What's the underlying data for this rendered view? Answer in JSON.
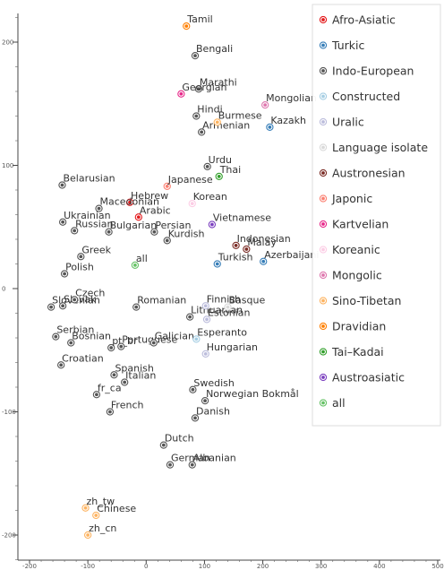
{
  "chart_data": {
    "type": "scatter",
    "title": "",
    "xlabel": "",
    "ylabel": "",
    "xlim": [
      -215,
      505
    ],
    "ylim": [
      -222,
      222
    ],
    "x_ticks": [
      "-200",
      "-100",
      "0",
      "100",
      "200",
      "300",
      "400",
      "500"
    ],
    "x_tick_values": [
      -200,
      -100,
      0,
      100,
      200,
      300,
      400,
      500
    ],
    "y_ticks": [
      "200",
      "100",
      "0",
      "-100",
      "-200"
    ],
    "y_tick_values": [
      200,
      100,
      0,
      -100,
      -200
    ],
    "grid": false,
    "legend_position": "top-right",
    "series": [
      {
        "name": "Afro-Asiatic",
        "color": "#e41a1c",
        "points": [
          {
            "label": "Hebrew",
            "x": -28,
            "y": 70
          },
          {
            "label": "Arabic",
            "x": -13,
            "y": 58
          }
        ]
      },
      {
        "name": "Turkic",
        "color": "#377eb8",
        "points": [
          {
            "label": "Kazakh",
            "x": 212,
            "y": 131
          },
          {
            "label": "Turkish",
            "x": 122,
            "y": 20
          },
          {
            "label": "Azerbaijani",
            "x": 201,
            "y": 22
          }
        ]
      },
      {
        "name": "Indo-European",
        "color": "#555555",
        "points": [
          {
            "label": "Bengali",
            "x": 84,
            "y": 189
          },
          {
            "label": "Marathi",
            "x": 90,
            "y": 162
          },
          {
            "label": "Hindi",
            "x": 86,
            "y": 140
          },
          {
            "label": "Armenian",
            "x": 95,
            "y": 127
          },
          {
            "label": "Urdu",
            "x": 105,
            "y": 99
          },
          {
            "label": "Belarusian",
            "x": -144,
            "y": 84
          },
          {
            "label": "Macedonian",
            "x": -81,
            "y": 65
          },
          {
            "label": "Ukrainian",
            "x": -143,
            "y": 54
          },
          {
            "label": "Russian",
            "x": -123,
            "y": 47
          },
          {
            "label": "Bulgarian",
            "x": -64,
            "y": 46
          },
          {
            "label": "Persian",
            "x": 14,
            "y": 46
          },
          {
            "label": "Kurdish",
            "x": 36,
            "y": 39
          },
          {
            "label": "Greek",
            "x": -112,
            "y": 26
          },
          {
            "label": "Polish",
            "x": -140,
            "y": 12
          },
          {
            "label": "Slovenian",
            "x": -163,
            "y": -15
          },
          {
            "label": "Slovak",
            "x": -143,
            "y": -14
          },
          {
            "label": "Czech",
            "x": -123,
            "y": -9
          },
          {
            "label": "Romanian",
            "x": -17,
            "y": -15
          },
          {
            "label": "Lithuanian",
            "x": 75,
            "y": -23
          },
          {
            "label": "Serbian",
            "x": -155,
            "y": -39
          },
          {
            "label": "Bosnian",
            "x": -129,
            "y": -44
          },
          {
            "label": "pt_br",
            "x": -60,
            "y": -48
          },
          {
            "label": "Portuguese",
            "x": -43,
            "y": -47
          },
          {
            "label": "Galician",
            "x": 13,
            "y": -44
          },
          {
            "label": "Croatian",
            "x": -146,
            "y": -62
          },
          {
            "label": "Spanish",
            "x": -55,
            "y": -70
          },
          {
            "label": "Italian",
            "x": -37,
            "y": -76
          },
          {
            "label": "fr_ca",
            "x": -85,
            "y": -86
          },
          {
            "label": "Swedish",
            "x": 80,
            "y": -82
          },
          {
            "label": "Norwegian Bokmål",
            "x": 101,
            "y": -91
          },
          {
            "label": "French",
            "x": -62,
            "y": -100
          },
          {
            "label": "Danish",
            "x": 84,
            "y": -105
          },
          {
            "label": "Dutch",
            "x": 30,
            "y": -127
          },
          {
            "label": "German",
            "x": 41,
            "y": -143
          },
          {
            "label": "Albanian",
            "x": 79,
            "y": -143
          }
        ]
      },
      {
        "name": "Constructed",
        "color": "#a6cee3",
        "points": [
          {
            "label": "Esperanto",
            "x": 86,
            "y": -41
          }
        ]
      },
      {
        "name": "Uralic",
        "color": "#bcbddc",
        "points": [
          {
            "label": "Finnish",
            "x": 102,
            "y": -14
          },
          {
            "label": "Estonian",
            "x": 104,
            "y": -25
          },
          {
            "label": "Hungarian",
            "x": 102,
            "y": -53
          }
        ]
      },
      {
        "name": "Language isolate",
        "color": "#d9d9d9",
        "points": [
          {
            "label": "Basque",
            "x": 140,
            "y": -15
          }
        ]
      },
      {
        "name": "Austronesian",
        "color": "#7b2d26",
        "points": [
          {
            "label": "Indonesian",
            "x": 154,
            "y": 35
          },
          {
            "label": "Malay",
            "x": 172,
            "y": 32
          }
        ]
      },
      {
        "name": "Japonic",
        "color": "#fb8072",
        "points": [
          {
            "label": "Japanese",
            "x": 36,
            "y": 83
          }
        ]
      },
      {
        "name": "Kartvelian",
        "color": "#e7298a",
        "points": [
          {
            "label": "Georgian",
            "x": 60,
            "y": 158
          }
        ]
      },
      {
        "name": "Koreanic",
        "color": "#fccde5",
        "points": [
          {
            "label": "Korean",
            "x": 79,
            "y": 69
          }
        ]
      },
      {
        "name": "Mongolic",
        "color": "#de77ae",
        "points": [
          {
            "label": "Mongolian",
            "x": 204,
            "y": 149
          }
        ]
      },
      {
        "name": "Sino-Tibetan",
        "color": "#fdb462",
        "points": [
          {
            "label": "Burmese",
            "x": 122,
            "y": 135
          },
          {
            "label": "zh_tw",
            "x": -104,
            "y": -178
          },
          {
            "label": "Chinese",
            "x": -86,
            "y": -184
          },
          {
            "label": "zh_cn",
            "x": -100,
            "y": -200
          }
        ]
      },
      {
        "name": "Dravidian",
        "color": "#ff7f00",
        "points": [
          {
            "label": "Tamil",
            "x": 69,
            "y": 213
          }
        ]
      },
      {
        "name": "Tai–Kadai",
        "color": "#33a02c",
        "points": [
          {
            "label": "Thai",
            "x": 125,
            "y": 91
          }
        ]
      },
      {
        "name": "Austroasiatic",
        "color": "#7b3fbf",
        "points": [
          {
            "label": "Vietnamese",
            "x": 113,
            "y": 52
          }
        ]
      },
      {
        "name": "all",
        "color": "#66c266",
        "points": [
          {
            "label": "all",
            "x": -19,
            "y": 19
          }
        ]
      }
    ]
  }
}
